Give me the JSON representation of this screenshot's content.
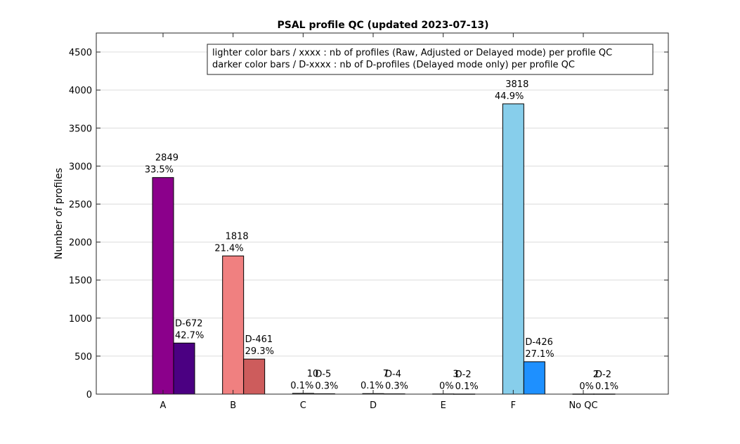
{
  "chart_data": {
    "type": "bar",
    "title": "PSAL profile QC (updated 2023-07-13)",
    "xlabel": "",
    "ylabel": "Number of profiles",
    "ylim": [
      0,
      4750
    ],
    "yticks": [
      0,
      500,
      1000,
      1500,
      2000,
      2500,
      3000,
      3500,
      4000,
      4500
    ],
    "grid": true,
    "legend_placement": "top-right",
    "legend": [
      "lighter color bars / xxxx : nb of profiles (Raw, Adjusted or Delayed mode) per profile QC",
      "darker color bars / D-xxxx : nb of D-profiles (Delayed mode only) per profile QC"
    ],
    "categories": [
      "A",
      "B",
      "C",
      "D",
      "E",
      "F",
      "No QC"
    ],
    "series": [
      {
        "values": [
          2849,
          1818,
          10,
          7,
          3,
          3818,
          2
        ],
        "labels": [
          "2849",
          "1818",
          "10",
          "7",
          "3",
          "3818",
          "2"
        ],
        "percents": [
          "33.5%",
          "21.4%",
          "0.1%",
          "0.1%",
          "0%",
          "44.9%",
          "0%"
        ],
        "colors": [
          "#8B008B",
          "#F08080",
          "#A9A9A9",
          "#A9A9A9",
          "#A9A9A9",
          "#87CEEB",
          "#A9A9A9"
        ]
      },
      {
        "values": [
          672,
          461,
          5,
          4,
          2,
          426,
          2
        ],
        "labels": [
          "D-672",
          "D-461",
          "D-5",
          "D-4",
          "D-2",
          "D-426",
          "D-2"
        ],
        "percents": [
          "42.7%",
          "29.3%",
          "0.3%",
          "0.3%",
          "0.1%",
          "27.1%",
          "0.1%"
        ],
        "colors": [
          "#4B0082",
          "#CD5C5C",
          "#555555",
          "#555555",
          "#555555",
          "#1E90FF",
          "#555555"
        ]
      }
    ]
  }
}
